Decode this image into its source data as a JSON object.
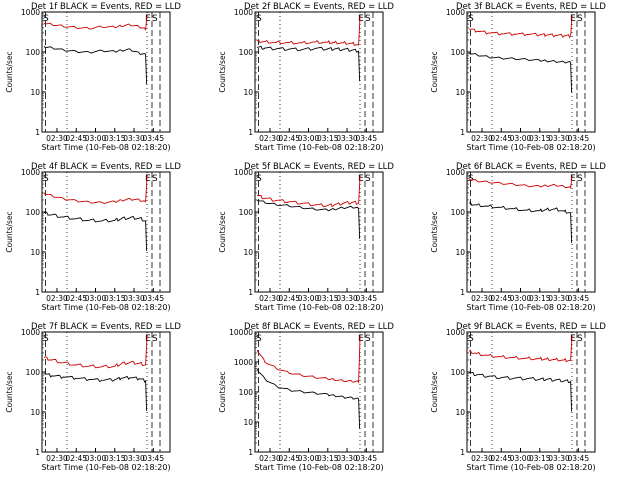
{
  "page": {
    "background": "#ffffff",
    "events_color": "#000000",
    "lld_color": "#cc0000"
  },
  "chart_data": [
    {
      "type": "line",
      "title": "Det 1f BLACK = Events, RED = LLD",
      "xlabel": "Start Time (10-Feb-08 02:18:20)",
      "ylabel": "Counts/sec",
      "xlim": [
        "02:18:20",
        "03:58:00"
      ],
      "ylim": [
        1,
        1000
      ],
      "y_scale": "log",
      "x_tick_labels": [
        "02:30",
        "02:45",
        "03:00",
        "03:15",
        "03:30",
        "03:45"
      ],
      "y_tick_labels": [
        "1",
        "10",
        "100",
        "1000"
      ],
      "x_ticks": [
        "02:30",
        "02:45",
        "03:00",
        "03:15",
        "03:30",
        "03:45"
      ],
      "y_ticks": [
        1,
        10,
        100,
        1000
      ],
      "markers": {
        "S_label": "S",
        "E_label": "E",
        "S2_label": "S"
      },
      "series": [
        {
          "name": "Events",
          "color": "#000000",
          "x": [
            "02:20",
            "02:26",
            "02:35",
            "02:45",
            "02:55",
            "03:05",
            "03:15",
            "03:20",
            "03:27",
            "03:34",
            "03:39"
          ],
          "y": [
            140,
            130,
            115,
            105,
            100,
            110,
            105,
            112,
            118,
            95,
            88
          ]
        },
        {
          "name": "LLD",
          "color": "#cc0000",
          "x": [
            "02:20",
            "02:26",
            "02:35",
            "02:45",
            "02:55",
            "03:05",
            "03:15",
            "03:20",
            "03:27",
            "03:34",
            "03:39"
          ],
          "y": [
            520,
            480,
            430,
            400,
            380,
            420,
            410,
            440,
            470,
            420,
            360
          ]
        }
      ]
    },
    {
      "type": "line",
      "title": "Det 2f BLACK = Events, RED = LLD",
      "xlabel": "Start Time (10-Feb-08 02:18:20)",
      "ylabel": "Counts/sec",
      "xlim": [
        "02:18:20",
        "03:58:00"
      ],
      "ylim": [
        1,
        1000
      ],
      "y_scale": "log",
      "x_tick_labels": [
        "02:30",
        "02:45",
        "03:00",
        "03:15",
        "03:30",
        "03:45"
      ],
      "y_tick_labels": [
        "1",
        "10",
        "100",
        "1000"
      ],
      "x_ticks": [
        "02:30",
        "02:45",
        "03:00",
        "03:15",
        "03:30",
        "03:45"
      ],
      "y_ticks": [
        1,
        10,
        100,
        1000
      ],
      "markers": {
        "S_label": "S",
        "E_label": "E",
        "S2_label": "S"
      },
      "series": [
        {
          "name": "Events",
          "color": "#000000",
          "x": [
            "02:20",
            "02:26",
            "02:35",
            "02:45",
            "02:55",
            "03:05",
            "03:15",
            "03:20",
            "03:27",
            "03:34",
            "03:39"
          ],
          "y": [
            130,
            125,
            120,
            118,
            115,
            122,
            120,
            118,
            116,
            112,
            105
          ]
        },
        {
          "name": "LLD",
          "color": "#cc0000",
          "x": [
            "02:20",
            "02:26",
            "02:35",
            "02:45",
            "02:55",
            "03:05",
            "03:15",
            "03:20",
            "03:27",
            "03:34",
            "03:39"
          ],
          "y": [
            190,
            180,
            175,
            172,
            170,
            178,
            176,
            172,
            170,
            165,
            150
          ]
        }
      ]
    },
    {
      "type": "line",
      "title": "Det 3f BLACK = Events, RED = LLD",
      "xlabel": "Start Time (10-Feb-08 02:18:20)",
      "ylabel": "Counts/sec",
      "xlim": [
        "02:18:20",
        "03:58:00"
      ],
      "ylim": [
        1,
        1000
      ],
      "y_scale": "log",
      "x_tick_labels": [
        "02:30",
        "02:45",
        "03:00",
        "03:15",
        "03:30",
        "03:45"
      ],
      "y_tick_labels": [
        "1",
        "10",
        "100",
        "1000"
      ],
      "x_ticks": [
        "02:30",
        "02:45",
        "03:00",
        "03:15",
        "03:30",
        "03:45"
      ],
      "y_ticks": [
        1,
        10,
        100,
        1000
      ],
      "markers": {
        "S_label": "S",
        "E_label": "E",
        "S2_label": "S"
      },
      "series": [
        {
          "name": "Events",
          "color": "#000000",
          "x": [
            "02:20",
            "02:26",
            "02:35",
            "02:45",
            "02:55",
            "03:05",
            "03:15",
            "03:20",
            "03:27",
            "03:34",
            "03:39"
          ],
          "y": [
            95,
            85,
            75,
            70,
            68,
            65,
            62,
            60,
            58,
            56,
            55
          ]
        },
        {
          "name": "LLD",
          "color": "#cc0000",
          "x": [
            "02:20",
            "02:26",
            "02:35",
            "02:45",
            "02:55",
            "03:05",
            "03:15",
            "03:20",
            "03:27",
            "03:34",
            "03:39"
          ],
          "y": [
            380,
            330,
            300,
            285,
            280,
            275,
            270,
            265,
            260,
            255,
            250
          ]
        }
      ]
    },
    {
      "type": "line",
      "title": "Det 4f BLACK = Events, RED = LLD",
      "xlabel": "Start Time (10-Feb-08 02:18:20)",
      "ylabel": "Counts/sec",
      "xlim": [
        "02:18:20",
        "03:58:00"
      ],
      "ylim": [
        1,
        1000
      ],
      "y_scale": "log",
      "x_tick_labels": [
        "02:30",
        "02:45",
        "03:00",
        "03:15",
        "03:30",
        "03:45"
      ],
      "y_tick_labels": [
        "1",
        "10",
        "100",
        "1000"
      ],
      "x_ticks": [
        "02:30",
        "02:45",
        "03:00",
        "03:15",
        "03:30",
        "03:45"
      ],
      "y_ticks": [
        1,
        10,
        100,
        1000
      ],
      "markers": {
        "S_label": "S",
        "E_label": "E",
        "S2_label": "S"
      },
      "series": [
        {
          "name": "Events",
          "color": "#000000",
          "x": [
            "02:20",
            "02:26",
            "02:35",
            "02:45",
            "02:55",
            "03:05",
            "03:15",
            "03:20",
            "03:27",
            "03:34",
            "03:39"
          ],
          "y": [
            95,
            85,
            75,
            68,
            62,
            60,
            62,
            68,
            72,
            70,
            60
          ]
        },
        {
          "name": "LLD",
          "color": "#cc0000",
          "x": [
            "02:20",
            "02:26",
            "02:35",
            "02:45",
            "02:55",
            "03:05",
            "03:15",
            "03:20",
            "03:27",
            "03:34",
            "03:39"
          ],
          "y": [
            300,
            260,
            220,
            195,
            180,
            175,
            185,
            200,
            215,
            205,
            180
          ]
        }
      ]
    },
    {
      "type": "line",
      "title": "Det 5f BLACK = Events, RED = LLD",
      "xlabel": "Start Time (10-Feb-08 02:18:20)",
      "ylabel": "Counts/sec",
      "xlim": [
        "02:18:20",
        "03:58:00"
      ],
      "ylim": [
        1,
        1000
      ],
      "y_scale": "log",
      "x_tick_labels": [
        "02:30",
        "02:45",
        "03:00",
        "03:15",
        "03:30",
        "03:45"
      ],
      "y_tick_labels": [
        "1",
        "10",
        "100",
        "1000"
      ],
      "x_ticks": [
        "02:30",
        "02:45",
        "03:00",
        "03:15",
        "03:30",
        "03:45"
      ],
      "y_ticks": [
        1,
        10,
        100,
        1000
      ],
      "markers": {
        "S_label": "S",
        "E_label": "E",
        "S2_label": "S"
      },
      "series": [
        {
          "name": "Events",
          "color": "#000000",
          "x": [
            "02:20",
            "02:26",
            "02:35",
            "02:45",
            "02:55",
            "03:05",
            "03:15",
            "03:20",
            "03:27",
            "03:34",
            "03:39"
          ],
          "y": [
            200,
            170,
            150,
            140,
            125,
            115,
            110,
            115,
            125,
            130,
            120
          ]
        },
        {
          "name": "LLD",
          "color": "#cc0000",
          "x": [
            "02:20",
            "02:26",
            "02:35",
            "02:45",
            "02:55",
            "03:05",
            "03:15",
            "03:20",
            "03:27",
            "03:34",
            "03:39"
          ],
          "y": [
            260,
            220,
            195,
            180,
            165,
            150,
            145,
            150,
            165,
            175,
            165
          ]
        }
      ]
    },
    {
      "type": "line",
      "title": "Det 6f BLACK = Events, RED = LLD",
      "xlabel": "Start Time (10-Feb-08 02:18:20)",
      "ylabel": "Counts/sec",
      "xlim": [
        "02:18:20",
        "03:58:00"
      ],
      "ylim": [
        1,
        1000
      ],
      "y_scale": "log",
      "x_tick_labels": [
        "02:30",
        "02:45",
        "03:00",
        "03:15",
        "03:30",
        "03:45"
      ],
      "y_tick_labels": [
        "1",
        "10",
        "100",
        "1000"
      ],
      "x_ticks": [
        "02:30",
        "02:45",
        "03:00",
        "03:15",
        "03:30",
        "03:45"
      ],
      "y_ticks": [
        1,
        10,
        100,
        1000
      ],
      "markers": {
        "S_label": "S",
        "E_label": "E",
        "S2_label": "S"
      },
      "series": [
        {
          "name": "Events",
          "color": "#000000",
          "x": [
            "02:20",
            "02:26",
            "02:35",
            "02:45",
            "02:55",
            "03:05",
            "03:15",
            "03:20",
            "03:27",
            "03:34",
            "03:39"
          ],
          "y": [
            165,
            150,
            140,
            130,
            120,
            110,
            108,
            115,
            120,
            105,
            95
          ]
        },
        {
          "name": "LLD",
          "color": "#cc0000",
          "x": [
            "02:20",
            "02:26",
            "02:35",
            "02:45",
            "02:55",
            "03:05",
            "03:15",
            "03:20",
            "03:27",
            "03:34",
            "03:39"
          ],
          "y": [
            680,
            600,
            560,
            520,
            490,
            450,
            440,
            455,
            470,
            430,
            400
          ]
        }
      ]
    },
    {
      "type": "line",
      "title": "Det 7f BLACK = Events, RED = LLD",
      "xlabel": "Start Time (10-Feb-08 02:18:20)",
      "ylabel": "Counts/sec",
      "xlim": [
        "02:18:20",
        "03:58:00"
      ],
      "ylim": [
        1,
        1000
      ],
      "y_scale": "log",
      "x_tick_labels": [
        "02:30",
        "02:45",
        "03:00",
        "03:15",
        "03:30",
        "03:45"
      ],
      "y_tick_labels": [
        "1",
        "10",
        "100",
        "1000"
      ],
      "x_ticks": [
        "02:30",
        "02:45",
        "03:00",
        "03:15",
        "03:30",
        "03:45"
      ],
      "y_ticks": [
        1,
        10,
        100,
        1000
      ],
      "markers": {
        "S_label": "S",
        "E_label": "E",
        "S2_label": "S"
      },
      "series": [
        {
          "name": "Events",
          "color": "#000000",
          "x": [
            "02:20",
            "02:26",
            "02:35",
            "02:45",
            "02:55",
            "03:05",
            "03:15",
            "03:20",
            "03:27",
            "03:34",
            "03:39"
          ],
          "y": [
            90,
            80,
            75,
            70,
            65,
            62,
            64,
            70,
            72,
            68,
            60
          ]
        },
        {
          "name": "LLD",
          "color": "#cc0000",
          "x": [
            "02:20",
            "02:26",
            "02:35",
            "02:45",
            "02:55",
            "03:05",
            "03:15",
            "03:20",
            "03:27",
            "03:34",
            "03:39"
          ],
          "y": [
            230,
            200,
            170,
            150,
            140,
            135,
            140,
            160,
            175,
            165,
            150
          ]
        }
      ]
    },
    {
      "type": "line",
      "title": "Det 8f BLACK = Events, RED = LLD",
      "xlabel": "Start Time (10-Feb-08 02:18:20)",
      "ylabel": "Counts/sec",
      "xlim": [
        "02:18:20",
        "03:58:00"
      ],
      "ylim": [
        1,
        10000
      ],
      "y_scale": "log",
      "x_tick_labels": [
        "02:30",
        "02:45",
        "03:00",
        "03:15",
        "03:30",
        "03:45"
      ],
      "y_tick_labels": [
        "1",
        "10",
        "100",
        "1000",
        "10000"
      ],
      "x_ticks": [
        "02:30",
        "02:45",
        "03:00",
        "03:15",
        "03:30",
        "03:45"
      ],
      "y_ticks": [
        1,
        10,
        100,
        1000,
        10000
      ],
      "markers": {
        "S_label": "S",
        "E_label": "E",
        "S2_label": "S"
      },
      "series": [
        {
          "name": "Events",
          "color": "#000000",
          "x": [
            "02:20",
            "02:26",
            "02:35",
            "02:45",
            "02:55",
            "03:05",
            "03:15",
            "03:20",
            "03:27",
            "03:34",
            "03:39"
          ],
          "y": [
            600,
            280,
            160,
            120,
            105,
            95,
            85,
            78,
            70,
            65,
            60
          ]
        },
        {
          "name": "LLD",
          "color": "#cc0000",
          "x": [
            "02:20",
            "02:26",
            "02:35",
            "02:45",
            "02:55",
            "03:05",
            "03:15",
            "03:20",
            "03:27",
            "03:34",
            "03:39"
          ],
          "y": [
            2500,
            1000,
            600,
            420,
            350,
            300,
            270,
            250,
            230,
            220,
            210
          ]
        }
      ]
    },
    {
      "type": "line",
      "title": "Det 9f BLACK = Events, RED = LLD",
      "xlabel": "Start Time (10-Feb-08 02:18:20)",
      "ylabel": "Counts/sec",
      "xlim": [
        "02:18:20",
        "03:58:00"
      ],
      "ylim": [
        1,
        1000
      ],
      "y_scale": "log",
      "x_tick_labels": [
        "02:30",
        "02:45",
        "03:00",
        "03:15",
        "03:30",
        "03:45"
      ],
      "y_tick_labels": [
        "1",
        "10",
        "100",
        "1000"
      ],
      "x_ticks": [
        "02:30",
        "02:45",
        "03:00",
        "03:15",
        "03:30",
        "03:45"
      ],
      "y_ticks": [
        1,
        10,
        100,
        1000
      ],
      "markers": {
        "S_label": "S",
        "E_label": "E",
        "S2_label": "S"
      },
      "series": [
        {
          "name": "Events",
          "color": "#000000",
          "x": [
            "02:20",
            "02:26",
            "02:35",
            "02:45",
            "02:55",
            "03:05",
            "03:15",
            "03:20",
            "03:27",
            "03:34",
            "03:39"
          ],
          "y": [
            95,
            85,
            78,
            72,
            70,
            68,
            66,
            65,
            63,
            60,
            58
          ]
        },
        {
          "name": "LLD",
          "color": "#cc0000",
          "x": [
            "02:20",
            "02:26",
            "02:35",
            "02:45",
            "02:55",
            "03:05",
            "03:15",
            "03:20",
            "03:27",
            "03:34",
            "03:39"
          ],
          "y": [
            330,
            290,
            260,
            240,
            230,
            220,
            215,
            210,
            205,
            200,
            195
          ]
        }
      ]
    }
  ]
}
